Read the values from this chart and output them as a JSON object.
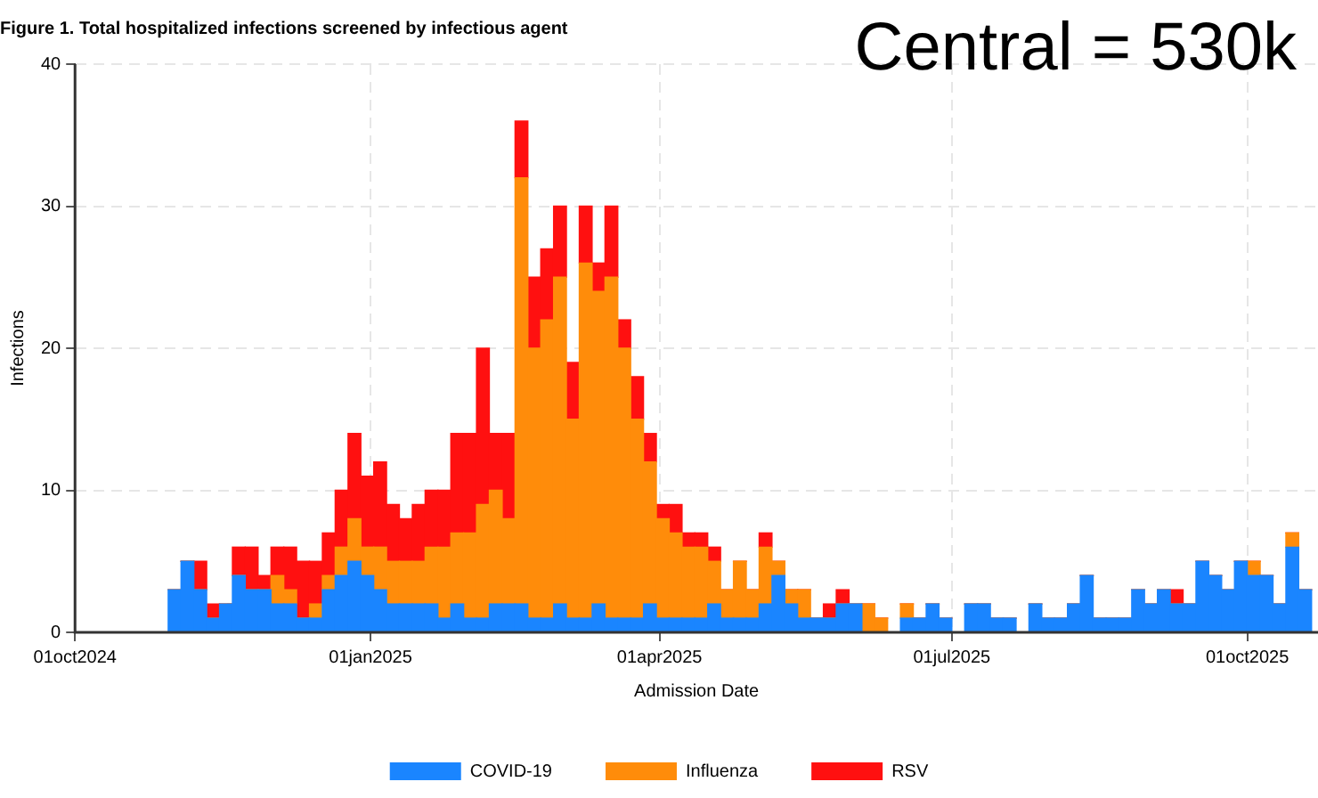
{
  "chart_data": {
    "type": "bar",
    "stacked": true,
    "title": "Figure 1. Total hospitalized infections screened by infectious agent",
    "xlabel": "Admission Date",
    "ylabel": "Infections",
    "annotations": [
      "Central = 530k"
    ],
    "x": [
      "2024-11-01",
      "2024-11-05",
      "2024-11-09",
      "2024-11-13",
      "2024-11-17",
      "2024-11-21",
      "2024-11-25",
      "2024-11-29",
      "2024-12-03",
      "2024-12-07",
      "2024-12-11",
      "2024-12-15",
      "2024-12-19",
      "2024-12-23",
      "2024-12-27",
      "2024-12-31",
      "2025-01-04",
      "2025-01-08",
      "2025-01-12",
      "2025-01-16",
      "2025-01-20",
      "2025-01-24",
      "2025-01-28",
      "2025-02-01",
      "2025-02-05",
      "2025-02-09",
      "2025-02-13",
      "2025-02-17",
      "2025-02-21",
      "2025-02-25",
      "2025-03-01",
      "2025-03-05",
      "2025-03-09",
      "2025-03-13",
      "2025-03-17",
      "2025-03-21",
      "2025-03-25",
      "2025-03-29",
      "2025-04-02",
      "2025-04-06",
      "2025-04-10",
      "2025-04-14",
      "2025-04-18",
      "2025-04-22",
      "2025-04-26",
      "2025-04-30",
      "2025-05-04",
      "2025-05-08",
      "2025-05-12",
      "2025-05-16",
      "2025-05-20",
      "2025-05-24",
      "2025-05-28",
      "2025-06-01",
      "2025-06-05",
      "2025-06-09",
      "2025-06-13",
      "2025-06-17",
      "2025-06-21",
      "2025-06-25",
      "2025-06-29",
      "2025-07-03",
      "2025-07-07",
      "2025-07-11",
      "2025-07-15",
      "2025-07-19",
      "2025-07-23",
      "2025-07-27",
      "2025-07-31",
      "2025-08-04",
      "2025-08-08",
      "2025-08-12",
      "2025-08-16",
      "2025-08-20",
      "2025-08-24",
      "2025-08-28",
      "2025-09-01",
      "2025-09-05",
      "2025-09-09",
      "2025-09-13",
      "2025-09-17",
      "2025-09-21",
      "2025-09-25",
      "2025-09-29",
      "2025-10-03",
      "2025-10-07",
      "2025-10-11",
      "2025-10-15",
      "2025-10-19"
    ],
    "series": [
      {
        "name": "COVID-19",
        "color": "#1a85ff",
        "values": [
          3,
          5,
          3,
          1,
          2,
          4,
          3,
          3,
          2,
          2,
          1,
          1,
          3,
          4,
          5,
          4,
          3,
          2,
          2,
          2,
          2,
          1,
          2,
          1,
          1,
          2,
          2,
          2,
          1,
          1,
          2,
          1,
          1,
          2,
          1,
          1,
          1,
          2,
          1,
          1,
          1,
          1,
          2,
          1,
          1,
          1,
          2,
          4,
          2,
          1,
          1,
          1,
          2,
          2,
          0,
          0,
          0,
          1,
          1,
          2,
          1,
          0,
          2,
          2,
          1,
          1,
          0,
          2,
          1,
          1,
          2,
          4,
          1,
          1,
          1,
          3,
          2,
          3,
          2,
          2,
          5,
          4,
          3,
          5,
          4,
          4,
          2,
          6,
          3
        ]
      },
      {
        "name": "Influenza",
        "color": "#ff8c0a",
        "values": [
          0,
          0,
          0,
          0,
          0,
          0,
          0,
          0,
          2,
          1,
          0,
          1,
          1,
          2,
          3,
          2,
          3,
          3,
          3,
          3,
          4,
          5,
          5,
          6,
          8,
          8,
          6,
          30,
          19,
          21,
          23,
          14,
          25,
          22,
          24,
          19,
          14,
          10,
          7,
          6,
          5,
          5,
          3,
          2,
          4,
          2,
          4,
          1,
          1,
          2,
          0,
          0,
          0,
          0,
          2,
          1,
          0,
          1,
          0,
          0,
          0,
          0,
          0,
          0,
          0,
          0,
          0,
          0,
          0,
          0,
          0,
          0,
          0,
          0,
          0,
          0,
          0,
          0,
          0,
          0,
          0,
          0,
          0,
          0,
          1,
          0,
          0,
          1,
          0
        ]
      },
      {
        "name": "RSV",
        "color": "#ff1010",
        "values": [
          0,
          0,
          2,
          1,
          0,
          2,
          3,
          1,
          2,
          3,
          4,
          3,
          3,
          4,
          6,
          5,
          6,
          4,
          3,
          4,
          4,
          4,
          7,
          7,
          11,
          4,
          6,
          4,
          5,
          5,
          5,
          4,
          4,
          2,
          5,
          2,
          3,
          2,
          1,
          2,
          1,
          1,
          1,
          0,
          0,
          0,
          1,
          0,
          0,
          0,
          0,
          1,
          1,
          0,
          0,
          0,
          0,
          0,
          0,
          0,
          0,
          0,
          0,
          0,
          0,
          0,
          0,
          0,
          0,
          0,
          0,
          0,
          0,
          0,
          0,
          0,
          0,
          0,
          1,
          0,
          0,
          0,
          0,
          0,
          0,
          0,
          0,
          0,
          0
        ]
      }
    ],
    "xlim": [
      "2024-10-01",
      "2025-10-23"
    ],
    "xticks": [
      {
        "value": "2024-10-01",
        "label": "01oct2024"
      },
      {
        "value": "2025-01-01",
        "label": "01jan2025"
      },
      {
        "value": "2025-04-01",
        "label": "01apr2025"
      },
      {
        "value": "2025-07-01",
        "label": "01jul2025"
      },
      {
        "value": "2025-10-01",
        "label": "01oct2025"
      }
    ],
    "ylim": [
      0,
      40
    ],
    "yticks": [
      0,
      10,
      20,
      30,
      40
    ],
    "grid": true,
    "legend": "bottom"
  }
}
